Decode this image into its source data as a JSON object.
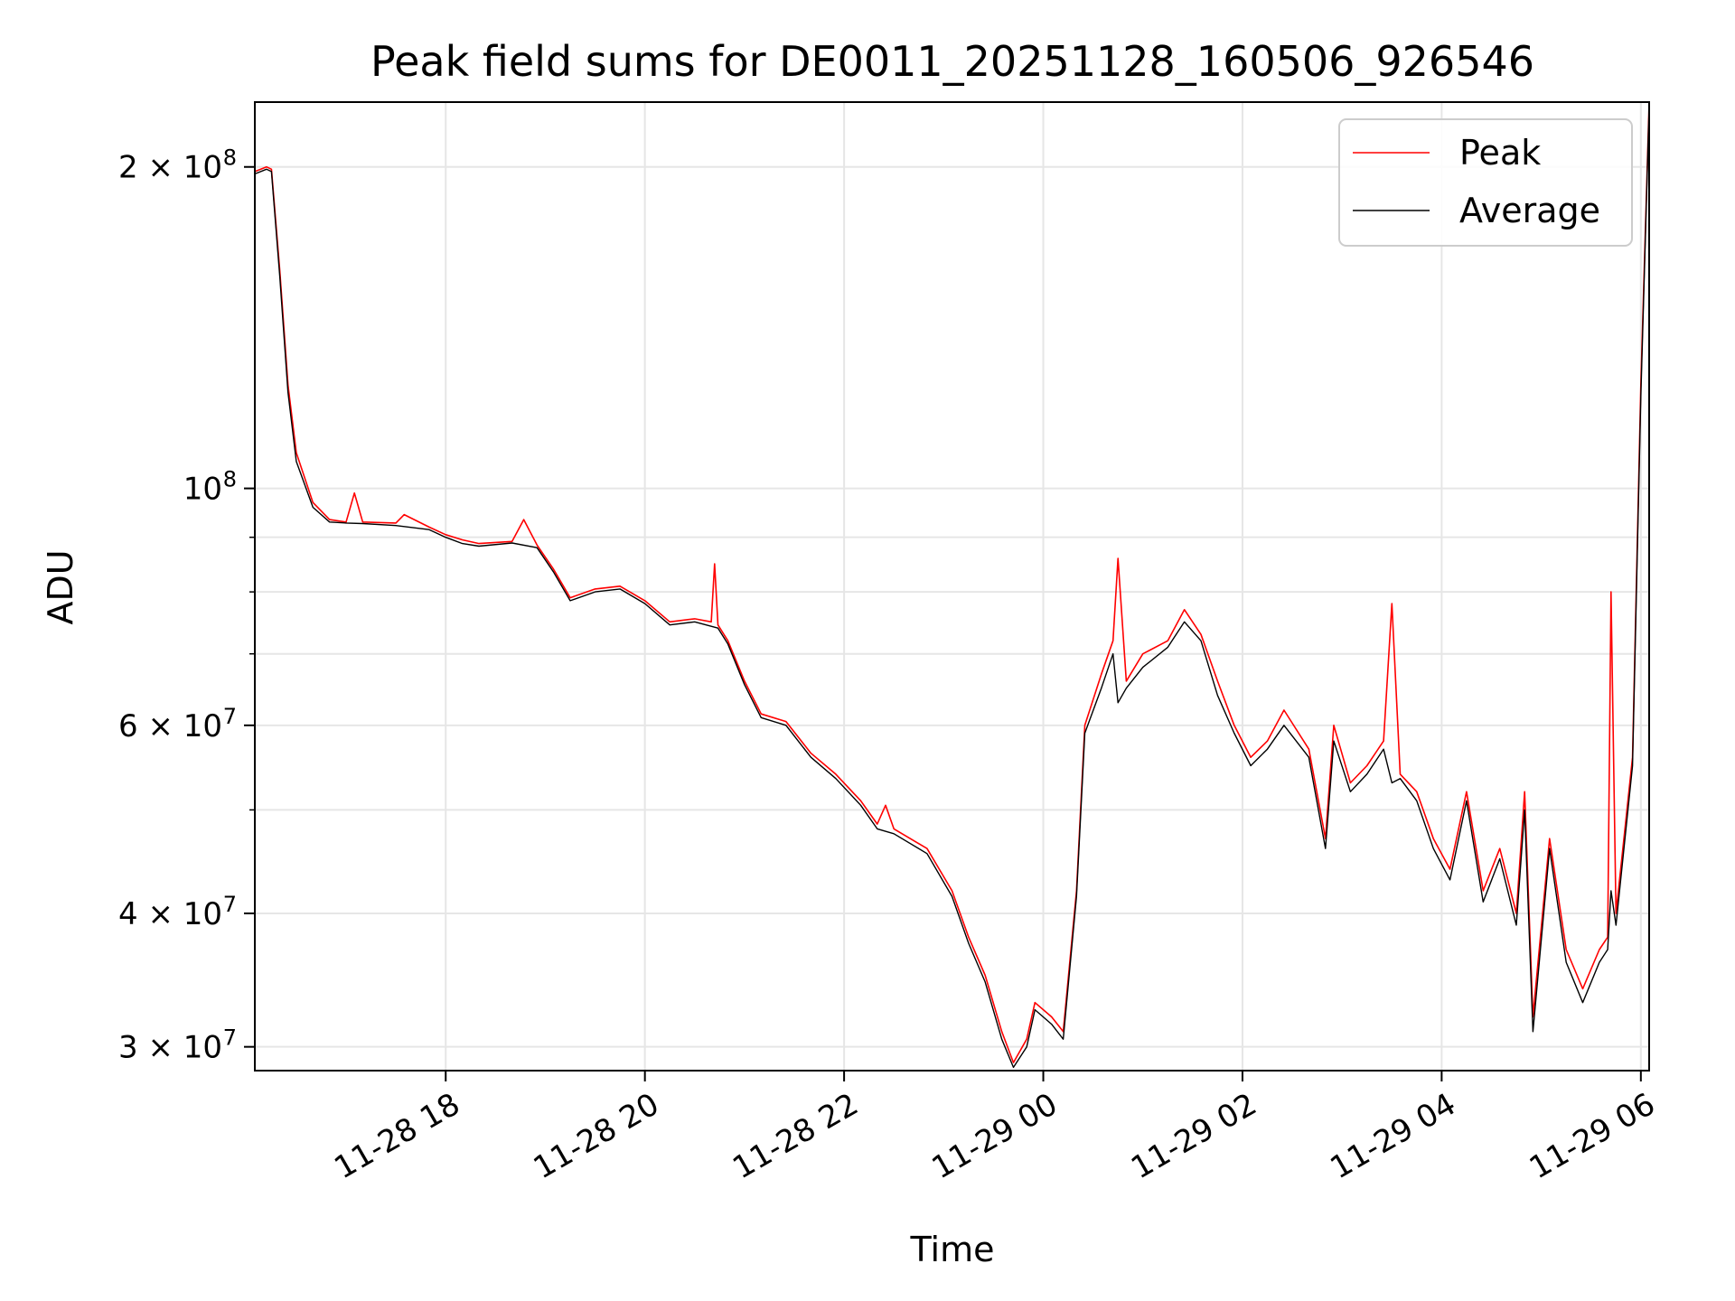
{
  "chart_data": {
    "type": "line",
    "title": "Peak field sums for DE0011_20251128_160506_926546",
    "xlabel": "Time",
    "ylabel": "ADU",
    "y_scale": "log",
    "grid": true,
    "legend_position": "top-right",
    "xlim": [
      "2025-11-28 16:05",
      "2025-11-29 06:05"
    ],
    "ylim": [
      28500000,
      230000000
    ],
    "x_ticks": [
      {
        "label": "11-28 18",
        "value": "2025-11-28 18:00"
      },
      {
        "label": "11-28 20",
        "value": "2025-11-28 20:00"
      },
      {
        "label": "11-28 22",
        "value": "2025-11-28 22:00"
      },
      {
        "label": "11-29 00",
        "value": "2025-11-29 00:00"
      },
      {
        "label": "11-29 02",
        "value": "2025-11-29 02:00"
      },
      {
        "label": "11-29 04",
        "value": "2025-11-29 04:00"
      },
      {
        "label": "11-29 06",
        "value": "2025-11-29 06:00"
      }
    ],
    "y_ticks": [
      {
        "mantissa": "3",
        "exp": "7",
        "value": 30000000
      },
      {
        "mantissa": "4",
        "exp": "7",
        "value": 40000000
      },
      {
        "mantissa": "6",
        "exp": "7",
        "value": 60000000
      },
      {
        "mantissa": "",
        "exp": "8",
        "value": 100000000
      },
      {
        "mantissa": "2",
        "exp": "8",
        "value": 200000000
      }
    ],
    "y_minor_gridlines": [
      50000000,
      70000000,
      80000000,
      90000000
    ],
    "series": [
      {
        "name": "Peak",
        "color": "#ff0000",
        "points": [
          [
            "2025-11-28 16:05",
            198000000
          ],
          [
            "2025-11-28 16:12",
            200000000
          ],
          [
            "2025-11-28 16:15",
            199000000
          ],
          [
            "2025-11-28 16:20",
            160000000
          ],
          [
            "2025-11-28 16:25",
            125000000
          ],
          [
            "2025-11-28 16:30",
            108000000
          ],
          [
            "2025-11-28 16:40",
            97000000
          ],
          [
            "2025-11-28 16:50",
            93500000
          ],
          [
            "2025-11-28 17:00",
            93000000
          ],
          [
            "2025-11-28 17:05",
            99000000
          ],
          [
            "2025-11-28 17:10",
            93000000
          ],
          [
            "2025-11-28 17:30",
            92800000
          ],
          [
            "2025-11-28 17:35",
            94500000
          ],
          [
            "2025-11-28 17:50",
            92000000
          ],
          [
            "2025-11-28 18:00",
            90500000
          ],
          [
            "2025-11-28 18:10",
            89500000
          ],
          [
            "2025-11-28 18:20",
            88800000
          ],
          [
            "2025-11-28 18:40",
            89200000
          ],
          [
            "2025-11-28 18:47",
            93500000
          ],
          [
            "2025-11-28 18:55",
            88500000
          ],
          [
            "2025-11-28 19:05",
            84000000
          ],
          [
            "2025-11-28 19:15",
            79000000
          ],
          [
            "2025-11-28 19:30",
            80500000
          ],
          [
            "2025-11-28 19:45",
            81000000
          ],
          [
            "2025-11-28 20:00",
            78500000
          ],
          [
            "2025-11-28 20:15",
            75000000
          ],
          [
            "2025-11-28 20:30",
            75500000
          ],
          [
            "2025-11-28 20:40",
            75000000
          ],
          [
            "2025-11-28 20:42",
            85000000
          ],
          [
            "2025-11-28 20:44",
            74500000
          ],
          [
            "2025-11-28 20:50",
            72000000
          ],
          [
            "2025-11-28 21:00",
            66000000
          ],
          [
            "2025-11-28 21:10",
            61500000
          ],
          [
            "2025-11-28 21:25",
            60500000
          ],
          [
            "2025-11-28 21:40",
            56500000
          ],
          [
            "2025-11-28 21:55",
            54000000
          ],
          [
            "2025-11-28 22:10",
            51000000
          ],
          [
            "2025-11-28 22:20",
            48500000
          ],
          [
            "2025-11-28 22:25",
            50500000
          ],
          [
            "2025-11-28 22:30",
            48000000
          ],
          [
            "2025-11-28 22:50",
            46000000
          ],
          [
            "2025-11-28 23:05",
            42000000
          ],
          [
            "2025-11-28 23:15",
            38000000
          ],
          [
            "2025-11-28 23:25",
            35000000
          ],
          [
            "2025-11-28 23:35",
            31000000
          ],
          [
            "2025-11-28 23:42",
            29000000
          ],
          [
            "2025-11-28 23:50",
            30500000
          ],
          [
            "2025-11-28 23:55",
            33000000
          ],
          [
            "2025-11-29 00:05",
            32000000
          ],
          [
            "2025-11-29 00:12",
            31000000
          ],
          [
            "2025-11-29 00:20",
            42000000
          ],
          [
            "2025-11-29 00:25",
            60000000
          ],
          [
            "2025-11-29 00:35",
            67000000
          ],
          [
            "2025-11-29 00:42",
            72000000
          ],
          [
            "2025-11-29 00:45",
            86000000
          ],
          [
            "2025-11-29 00:50",
            66000000
          ],
          [
            "2025-11-29 01:00",
            70000000
          ],
          [
            "2025-11-29 01:15",
            72000000
          ],
          [
            "2025-11-29 01:25",
            77000000
          ],
          [
            "2025-11-29 01:35",
            73000000
          ],
          [
            "2025-11-29 01:45",
            66000000
          ],
          [
            "2025-11-29 01:55",
            60000000
          ],
          [
            "2025-11-29 02:05",
            56000000
          ],
          [
            "2025-11-29 02:15",
            58000000
          ],
          [
            "2025-11-29 02:25",
            62000000
          ],
          [
            "2025-11-29 02:40",
            57000000
          ],
          [
            "2025-11-29 02:50",
            47000000
          ],
          [
            "2025-11-29 02:55",
            60000000
          ],
          [
            "2025-11-29 03:05",
            53000000
          ],
          [
            "2025-11-29 03:15",
            55000000
          ],
          [
            "2025-11-29 03:25",
            58000000
          ],
          [
            "2025-11-29 03:30",
            78000000
          ],
          [
            "2025-11-29 03:35",
            54000000
          ],
          [
            "2025-11-29 03:45",
            52000000
          ],
          [
            "2025-11-29 03:55",
            47000000
          ],
          [
            "2025-11-29 04:05",
            44000000
          ],
          [
            "2025-11-29 04:15",
            52000000
          ],
          [
            "2025-11-29 04:25",
            42000000
          ],
          [
            "2025-11-29 04:35",
            46000000
          ],
          [
            "2025-11-29 04:45",
            40000000
          ],
          [
            "2025-11-29 04:50",
            52000000
          ],
          [
            "2025-11-29 04:55",
            32000000
          ],
          [
            "2025-11-29 05:05",
            47000000
          ],
          [
            "2025-11-29 05:15",
            37000000
          ],
          [
            "2025-11-29 05:25",
            34000000
          ],
          [
            "2025-11-29 05:35",
            37000000
          ],
          [
            "2025-11-29 05:40",
            38000000
          ],
          [
            "2025-11-29 05:42",
            80000000
          ],
          [
            "2025-11-29 05:45",
            40000000
          ],
          [
            "2025-11-29 05:55",
            56000000
          ],
          [
            "2025-11-29 06:00",
            125000000
          ],
          [
            "2025-11-29 06:05",
            230000000
          ]
        ]
      },
      {
        "name": "Average",
        "color": "#000000",
        "points": [
          [
            "2025-11-28 16:05",
            197000000
          ],
          [
            "2025-11-28 16:12",
            199000000
          ],
          [
            "2025-11-28 16:15",
            198000000
          ],
          [
            "2025-11-28 16:20",
            158000000
          ],
          [
            "2025-11-28 16:25",
            123000000
          ],
          [
            "2025-11-28 16:30",
            106000000
          ],
          [
            "2025-11-28 16:40",
            96000000
          ],
          [
            "2025-11-28 16:50",
            93000000
          ],
          [
            "2025-11-28 17:00",
            92800000
          ],
          [
            "2025-11-28 17:10",
            92700000
          ],
          [
            "2025-11-28 17:30",
            92300000
          ],
          [
            "2025-11-28 17:50",
            91500000
          ],
          [
            "2025-11-28 18:00",
            90000000
          ],
          [
            "2025-11-28 18:10",
            88800000
          ],
          [
            "2025-11-28 18:20",
            88300000
          ],
          [
            "2025-11-28 18:40",
            88900000
          ],
          [
            "2025-11-28 18:55",
            88000000
          ],
          [
            "2025-11-28 19:05",
            83500000
          ],
          [
            "2025-11-28 19:15",
            78500000
          ],
          [
            "2025-11-28 19:30",
            80000000
          ],
          [
            "2025-11-28 19:45",
            80500000
          ],
          [
            "2025-11-28 20:00",
            78000000
          ],
          [
            "2025-11-28 20:15",
            74500000
          ],
          [
            "2025-11-28 20:30",
            75000000
          ],
          [
            "2025-11-28 20:44",
            74000000
          ],
          [
            "2025-11-28 20:50",
            71500000
          ],
          [
            "2025-11-28 21:00",
            65500000
          ],
          [
            "2025-11-28 21:10",
            61000000
          ],
          [
            "2025-11-28 21:25",
            60000000
          ],
          [
            "2025-11-28 21:40",
            56000000
          ],
          [
            "2025-11-28 21:55",
            53500000
          ],
          [
            "2025-11-28 22:10",
            50500000
          ],
          [
            "2025-11-28 22:20",
            48000000
          ],
          [
            "2025-11-28 22:30",
            47500000
          ],
          [
            "2025-11-28 22:50",
            45500000
          ],
          [
            "2025-11-28 23:05",
            41500000
          ],
          [
            "2025-11-28 23:15",
            37500000
          ],
          [
            "2025-11-28 23:25",
            34500000
          ],
          [
            "2025-11-28 23:35",
            30500000
          ],
          [
            "2025-11-28 23:42",
            28700000
          ],
          [
            "2025-11-28 23:50",
            30000000
          ],
          [
            "2025-11-28 23:55",
            32500000
          ],
          [
            "2025-11-29 00:05",
            31500000
          ],
          [
            "2025-11-29 00:12",
            30500000
          ],
          [
            "2025-11-29 00:20",
            41500000
          ],
          [
            "2025-11-29 00:25",
            59000000
          ],
          [
            "2025-11-29 00:35",
            65000000
          ],
          [
            "2025-11-29 00:42",
            70000000
          ],
          [
            "2025-11-29 00:45",
            63000000
          ],
          [
            "2025-11-29 00:50",
            65000000
          ],
          [
            "2025-11-29 01:00",
            68000000
          ],
          [
            "2025-11-29 01:15",
            71000000
          ],
          [
            "2025-11-29 01:25",
            75000000
          ],
          [
            "2025-11-29 01:35",
            72000000
          ],
          [
            "2025-11-29 01:45",
            64000000
          ],
          [
            "2025-11-29 01:55",
            59000000
          ],
          [
            "2025-11-29 02:05",
            55000000
          ],
          [
            "2025-11-29 02:15",
            57000000
          ],
          [
            "2025-11-29 02:25",
            60000000
          ],
          [
            "2025-11-29 02:40",
            56000000
          ],
          [
            "2025-11-29 02:50",
            46000000
          ],
          [
            "2025-11-29 02:55",
            58000000
          ],
          [
            "2025-11-29 03:05",
            52000000
          ],
          [
            "2025-11-29 03:15",
            54000000
          ],
          [
            "2025-11-29 03:25",
            57000000
          ],
          [
            "2025-11-29 03:30",
            53000000
          ],
          [
            "2025-11-29 03:35",
            53500000
          ],
          [
            "2025-11-29 03:45",
            51000000
          ],
          [
            "2025-11-29 03:55",
            46000000
          ],
          [
            "2025-11-29 04:05",
            43000000
          ],
          [
            "2025-11-29 04:15",
            51000000
          ],
          [
            "2025-11-29 04:25",
            41000000
          ],
          [
            "2025-11-29 04:35",
            45000000
          ],
          [
            "2025-11-29 04:45",
            39000000
          ],
          [
            "2025-11-29 04:50",
            50000000
          ],
          [
            "2025-11-29 04:55",
            31000000
          ],
          [
            "2025-11-29 05:05",
            46000000
          ],
          [
            "2025-11-29 05:15",
            36000000
          ],
          [
            "2025-11-29 05:25",
            33000000
          ],
          [
            "2025-11-29 05:35",
            36000000
          ],
          [
            "2025-11-29 05:40",
            37000000
          ],
          [
            "2025-11-29 05:42",
            42000000
          ],
          [
            "2025-11-29 05:45",
            39000000
          ],
          [
            "2025-11-29 05:55",
            55000000
          ],
          [
            "2025-11-29 06:00",
            122000000
          ],
          [
            "2025-11-29 06:05",
            228000000
          ]
        ]
      }
    ]
  }
}
